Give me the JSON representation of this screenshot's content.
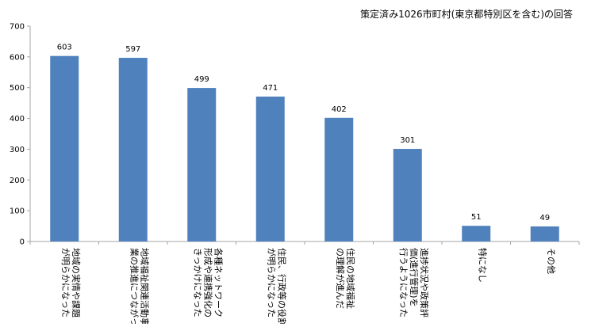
{
  "chart_data": {
    "type": "bar",
    "title": "策定済み1026市町村(東京都特別区を含む)の回答",
    "categories": [
      [
        "地域の実情や課題",
        "が明らかになった"
      ],
      [
        "地域福祉関連活動事",
        "業の推進につながった"
      ],
      [
        "各種ネットワーク",
        "形成や連携強化の",
        "きっかけになった"
      ],
      [
        "住民、行政等の役割",
        "が明らかになった"
      ],
      [
        "住民の地域福祉",
        "の理解が進んだ"
      ],
      [
        "進捗状況や政策評",
        "価(進行管理)を",
        "行うようになった"
      ],
      [
        "特になし"
      ],
      [
        "その他"
      ]
    ],
    "values": [
      603,
      597,
      499,
      471,
      402,
      301,
      51,
      49
    ],
    "ylim": [
      0,
      700
    ],
    "yticks": [
      0,
      100,
      200,
      300,
      400,
      500,
      600,
      700
    ],
    "bar_color": "#4f81bd",
    "axis_color": "#a6a6a6",
    "grid": false,
    "legend": "none",
    "data_labels": true
  }
}
